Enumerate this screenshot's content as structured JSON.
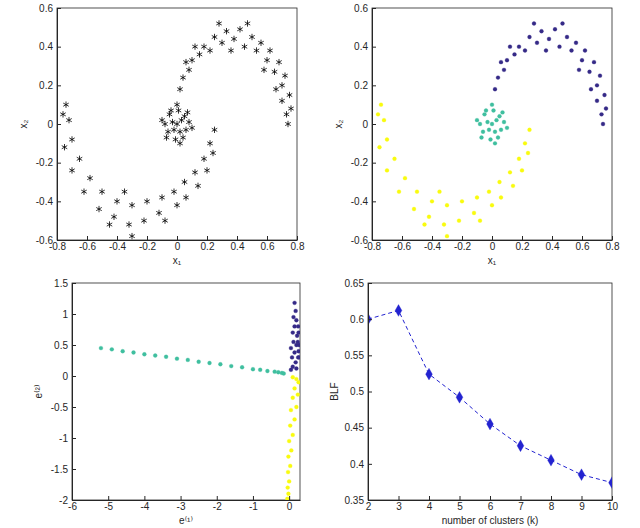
{
  "chart_data": [
    {
      "type": "scatter",
      "x_label": "x₁",
      "y_label": "x₂",
      "xlim": [
        -0.8,
        0.8
      ],
      "xticks": [
        -0.8,
        -0.6,
        -0.4,
        -0.2,
        0,
        0.2,
        0.4,
        0.6,
        0.8
      ],
      "ylim": [
        -0.6,
        0.6
      ],
      "yticks": [
        -0.6,
        -0.4,
        -0.2,
        0,
        0.2,
        0.4,
        0.6
      ],
      "marker": "asterisk",
      "series": [
        {
          "color": "#000000",
          "x": [
            0.02,
            0.04,
            0.08,
            0.1,
            0.15,
            0.18,
            0.22,
            0.25,
            0.3,
            0.33,
            0.38,
            0.42,
            0.45,
            0.5,
            0.53,
            0.56,
            0.6,
            0.62,
            0.65,
            0.68,
            0.7,
            0.72,
            0.7,
            0.75,
            0.73,
            0.76,
            0.74,
            0.12,
            0.28,
            0.47,
            0.58,
            0.66,
            0.06,
            0.36,
            0.25,
            0.22,
            0.24,
            0.18,
            0.2,
            0.12,
            0.14,
            0.05,
            0.06,
            -0.02,
            0.0,
            -0.1,
            -0.12,
            -0.2,
            -0.22,
            -0.3,
            -0.32,
            -0.4,
            -0.42,
            -0.5,
            -0.52,
            -0.58,
            -0.62,
            -0.65,
            -0.7,
            -0.7,
            -0.75,
            -0.72,
            -0.76,
            -0.74,
            -0.3,
            -0.45,
            -0.08,
            -0.35,
            0,
            0.03,
            -0.03,
            0.02,
            -0.02,
            0.05,
            -0.05,
            0.06,
            -0.06,
            0.01,
            -0.01,
            0.08,
            -0.08,
            0.04,
            -0.04,
            0.07,
            -0.07,
            0.0,
            0.02,
            -0.1,
            0.1
          ],
          "values": [
            0.18,
            0.24,
            0.28,
            0.33,
            0.36,
            0.4,
            0.38,
            0.45,
            0.42,
            0.48,
            0.44,
            0.49,
            0.4,
            0.45,
            0.38,
            0.42,
            0.33,
            0.38,
            0.27,
            0.32,
            0.2,
            0.25,
            0.12,
            0.15,
            0.05,
            0.08,
            0.0,
            0.4,
            0.52,
            0.52,
            0.28,
            0.18,
            0.32,
            0.38,
            -0.03,
            -0.1,
            -0.15,
            -0.18,
            -0.24,
            -0.25,
            -0.32,
            -0.3,
            -0.38,
            -0.35,
            -0.42,
            -0.38,
            -0.46,
            -0.4,
            -0.5,
            -0.42,
            -0.52,
            -0.4,
            -0.48,
            -0.35,
            -0.44,
            -0.28,
            -0.35,
            -0.18,
            -0.24,
            -0.08,
            -0.12,
            0.02,
            0.05,
            0.1,
            -0.58,
            -0.52,
            -0.5,
            -0.35,
            0,
            0.02,
            0.01,
            -0.04,
            -0.03,
            0.04,
            0.05,
            -0.03,
            -0.04,
            0.07,
            -0.08,
            0.01,
            0.0,
            -0.07,
            0.07,
            0.06,
            -0.07,
            0.1,
            -0.1,
            0.02,
            -0.02
          ]
        }
      ]
    },
    {
      "type": "scatter",
      "x_label": "x₁",
      "y_label": "x₂",
      "xlim": [
        -0.8,
        0.8
      ],
      "xticks": [
        -0.8,
        -0.6,
        -0.4,
        -0.2,
        0,
        0.2,
        0.4,
        0.6,
        0.8
      ],
      "ylim": [
        -0.6,
        0.6
      ],
      "yticks": [
        -0.6,
        -0.4,
        -0.2,
        0,
        0.2,
        0.4,
        0.6
      ],
      "marker": "circle",
      "series": [
        {
          "color": "#352a87",
          "x": [
            0.02,
            0.04,
            0.08,
            0.1,
            0.15,
            0.18,
            0.22,
            0.25,
            0.3,
            0.33,
            0.38,
            0.42,
            0.45,
            0.5,
            0.53,
            0.56,
            0.6,
            0.62,
            0.65,
            0.68,
            0.7,
            0.72,
            0.7,
            0.75,
            0.73,
            0.76,
            0.74,
            0.12,
            0.28,
            0.47,
            0.58,
            0.66,
            0.06,
            0.36
          ],
          "values": [
            0.18,
            0.24,
            0.28,
            0.33,
            0.36,
            0.4,
            0.38,
            0.45,
            0.42,
            0.48,
            0.44,
            0.49,
            0.4,
            0.45,
            0.38,
            0.42,
            0.33,
            0.38,
            0.27,
            0.32,
            0.2,
            0.25,
            0.12,
            0.15,
            0.05,
            0.08,
            0.0,
            0.4,
            0.52,
            0.52,
            0.28,
            0.18,
            0.32,
            0.38
          ]
        },
        {
          "color": "#3fbf9f",
          "x": [
            0,
            0.03,
            -0.03,
            0.02,
            -0.02,
            0.05,
            -0.05,
            0.06,
            -0.06,
            0.01,
            -0.01,
            0.08,
            -0.08,
            0.04,
            -0.04,
            0.07,
            -0.07,
            0.0,
            0.02,
            -0.1,
            0.1
          ],
          "values": [
            0,
            0.02,
            0.01,
            -0.04,
            -0.03,
            0.04,
            0.05,
            -0.03,
            -0.04,
            0.07,
            -0.08,
            0.01,
            0.0,
            -0.07,
            0.07,
            0.06,
            -0.07,
            0.1,
            -0.1,
            0.02,
            -0.02
          ]
        },
        {
          "color": "#f9fb0e",
          "x": [
            0.25,
            0.22,
            0.24,
            0.18,
            0.2,
            0.12,
            0.14,
            0.05,
            0.06,
            -0.02,
            0.0,
            -0.1,
            -0.12,
            -0.2,
            -0.22,
            -0.3,
            -0.32,
            -0.4,
            -0.42,
            -0.5,
            -0.52,
            -0.58,
            -0.62,
            -0.65,
            -0.7,
            -0.7,
            -0.75,
            -0.72,
            -0.76,
            -0.74,
            -0.3,
            -0.45,
            -0.08,
            -0.35
          ],
          "values": [
            -0.03,
            -0.1,
            -0.15,
            -0.18,
            -0.24,
            -0.25,
            -0.32,
            -0.3,
            -0.38,
            -0.35,
            -0.42,
            -0.38,
            -0.46,
            -0.4,
            -0.5,
            -0.42,
            -0.52,
            -0.4,
            -0.48,
            -0.35,
            -0.44,
            -0.28,
            -0.35,
            -0.18,
            -0.24,
            -0.08,
            -0.12,
            0.02,
            0.05,
            0.1,
            -0.58,
            -0.52,
            -0.5,
            -0.35
          ]
        }
      ]
    },
    {
      "type": "scatter",
      "x_label": "e⁽¹⁾",
      "y_label": "e⁽²⁾",
      "xlim": [
        -6,
        0.3
      ],
      "xticks": [
        -6,
        -5,
        -4,
        -3,
        -2,
        -1,
        0
      ],
      "ylim": [
        -2,
        1.5
      ],
      "yticks": [
        -2,
        -1.5,
        -1,
        -0.5,
        0,
        0.5,
        1,
        1.5
      ],
      "marker": "circle",
      "series": [
        {
          "color": "#3fbf9f",
          "x": [
            -5.2,
            -4.9,
            -4.6,
            -4.3,
            -4.0,
            -3.7,
            -3.4,
            -3.1,
            -2.8,
            -2.5,
            -2.2,
            -1.9,
            -1.6,
            -1.3,
            -1.0,
            -0.8,
            -0.6,
            -0.4,
            -0.3,
            -0.2,
            -0.15
          ],
          "values": [
            0.45,
            0.43,
            0.4,
            0.38,
            0.35,
            0.33,
            0.31,
            0.28,
            0.26,
            0.23,
            0.21,
            0.19,
            0.16,
            0.14,
            0.11,
            0.1,
            0.08,
            0.07,
            0.06,
            0.05,
            0.04
          ]
        },
        {
          "color": "#352a87",
          "x": [
            0.15,
            0.18,
            0.12,
            0.2,
            0.25,
            0.15,
            0.26,
            0.1,
            0.22,
            0.24,
            0.12,
            0.27,
            0.2,
            0.05,
            0.26,
            0.15,
            0.25,
            0.08,
            0.18,
            0.1,
            0.05,
            0.2,
            0.27
          ],
          "values": [
            1.18,
            1.05,
            0.95,
            0.9,
            0.8,
            0.8,
            0.7,
            0.7,
            0.65,
            0.55,
            0.55,
            0.5,
            0.5,
            0.45,
            0.4,
            0.38,
            0.3,
            0.3,
            0.22,
            0.15,
            0.1,
            0.12,
            0.3
          ]
        },
        {
          "color": "#f9fb0e",
          "x": [
            0.1,
            0.2,
            0.26,
            0.15,
            0.24,
            0.1,
            0.2,
            0.05,
            0.15,
            0.03,
            0.1,
            0.0,
            0.06,
            -0.02,
            0.03,
            -0.03,
            0.0,
            -0.04,
            -0.02,
            -0.05
          ],
          "values": [
            -0.02,
            -0.05,
            -0.1,
            -0.2,
            -0.3,
            -0.35,
            -0.5,
            -0.55,
            -0.7,
            -0.8,
            -0.95,
            -1.05,
            -1.2,
            -1.3,
            -1.45,
            -1.55,
            -1.7,
            -1.8,
            -1.9,
            -1.98
          ]
        }
      ]
    },
    {
      "type": "line",
      "x_label": "number of clusters (k)",
      "y_label": "BLF",
      "x": [
        2,
        3,
        4,
        5,
        6,
        7,
        8,
        9,
        10
      ],
      "xlim": [
        2,
        10
      ],
      "xticks": [
        2,
        3,
        4,
        5,
        6,
        7,
        8,
        9,
        10
      ],
      "ylim": [
        0.35,
        0.65
      ],
      "yticks": [
        0.35,
        0.4,
        0.45,
        0.5,
        0.55,
        0.6,
        0.65
      ],
      "marker": "diamond",
      "line_style": "dashed",
      "series": [
        {
          "color": "#2323d0",
          "values": [
            0.6,
            0.612,
            0.524,
            0.492,
            0.455,
            0.425,
            0.405,
            0.385,
            0.374
          ]
        }
      ]
    }
  ]
}
